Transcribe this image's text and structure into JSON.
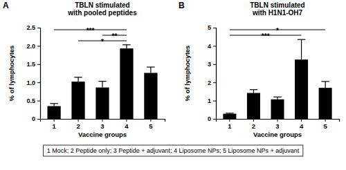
{
  "chart_data": [
    {
      "type": "bar",
      "panel_label": "A",
      "title": [
        "TBLN stimulated",
        "with pooled peptides"
      ],
      "x_label": "Vaccine groups",
      "y_label": "% of lymphocytes",
      "categories": [
        "1",
        "2",
        "3",
        "4",
        "5"
      ],
      "values": [
        0.35,
        1.02,
        0.86,
        1.93,
        1.26
      ],
      "errors": [
        0.07,
        0.12,
        0.17,
        0.1,
        0.16
      ],
      "color": "#000000",
      "ylim": [
        0,
        2.5
      ],
      "yticks": [
        0,
        0.5,
        {
          "value": 1,
          "label": "1.0"
        },
        1.5,
        {
          "value": 2,
          "label": "2.0"
        },
        2.5
      ],
      "annotations": [
        {
          "text": "***",
          "from": "1",
          "to": "4"
        },
        {
          "text": "**",
          "from": "3",
          "to": "4"
        },
        {
          "text": "*",
          "from": "2",
          "to": "4"
        }
      ]
    },
    {
      "type": "bar",
      "panel_label": "B",
      "title": [
        "TBLN stimulated",
        "with H1N1-OH7"
      ],
      "x_label": "Vaccine groups",
      "y_label": "% of lymphocytes",
      "categories": [
        "1",
        "2",
        "3",
        "4",
        "5"
      ],
      "values": [
        0.28,
        1.42,
        1.07,
        3.25,
        1.7
      ],
      "errors": [
        0.03,
        0.18,
        0.13,
        1.1,
        0.35
      ],
      "color": "#000000",
      "ylim": [
        0,
        5
      ],
      "yticks": [
        0,
        1,
        2,
        3,
        4,
        5
      ],
      "annotations": [
        {
          "text": "*",
          "from": "1",
          "to": "5"
        },
        {
          "text": "***",
          "from": "1",
          "to": "4"
        }
      ]
    }
  ],
  "footnote": "1 Mock; 2 Peptide only; 3 Peptide + adjuvant; 4 Liposome NPs; 5 Liposome NPs + adjuvant"
}
